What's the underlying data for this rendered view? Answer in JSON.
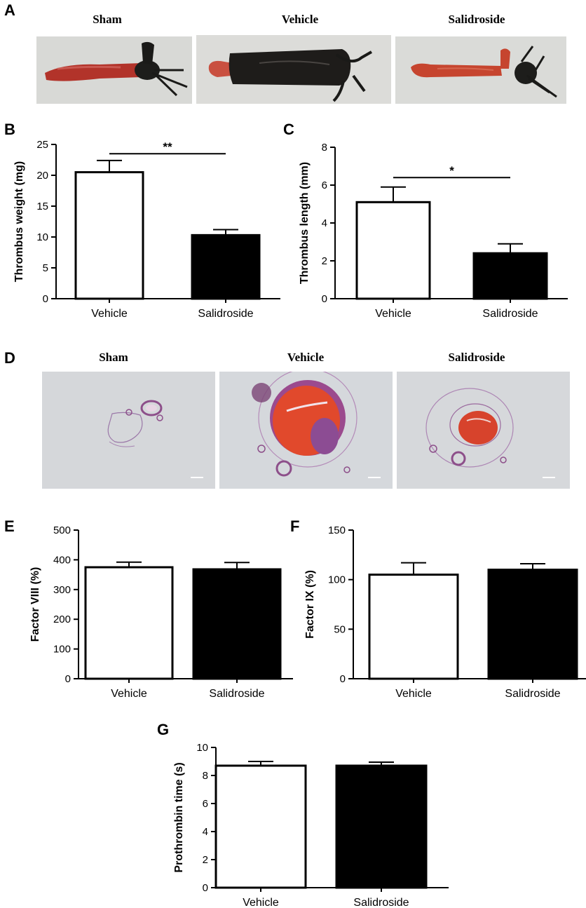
{
  "panel_a": {
    "letter": "A",
    "titles": [
      "Sham",
      "Vehicle",
      "Salidroside"
    ]
  },
  "panel_d": {
    "letter": "D",
    "titles": [
      "Sham",
      "Vehicle",
      "Salidroside"
    ]
  },
  "colors": {
    "vehicle_bar": "#ffffff",
    "salidroside_bar": "#000000",
    "photo_bg": "#d9dad8",
    "tissue_red": "#e0472a",
    "tissue_purple": "#9a4f9a"
  },
  "chart_data": [
    {
      "id": "B",
      "letter": "B",
      "type": "bar",
      "categories": [
        "Vehicle",
        "Salidroside"
      ],
      "values": [
        20.5,
        10.3
      ],
      "errors": [
        1.9,
        0.9
      ],
      "ylabel": "Thrombus weight (mg)",
      "xlabel": "",
      "ylim": [
        0,
        25
      ],
      "yticks": [
        0,
        5,
        10,
        15,
        20,
        25
      ],
      "ytick_labels": [
        "0",
        "5",
        "10",
        "15",
        "20",
        "25"
      ],
      "significance": {
        "label": "**",
        "y": 23.5
      },
      "grid": false
    },
    {
      "id": "C",
      "letter": "C",
      "type": "bar",
      "categories": [
        "Vehicle",
        "Salidroside"
      ],
      "values": [
        5.1,
        2.4
      ],
      "errors": [
        0.8,
        0.5
      ],
      "ylabel": "Thrombus length (mm)",
      "xlabel": "",
      "ylim": [
        0,
        8
      ],
      "yticks": [
        0,
        2,
        4,
        6,
        8
      ],
      "ytick_labels": [
        "0",
        "2",
        "4",
        "6",
        "8"
      ],
      "significance": {
        "label": "*",
        "y": 6.4
      },
      "grid": false
    },
    {
      "id": "E",
      "letter": "E",
      "type": "bar",
      "categories": [
        "Vehicle",
        "Salidroside"
      ],
      "values": [
        375,
        368
      ],
      "errors": [
        17,
        23
      ],
      "ylabel": "Factor VIII (%)",
      "xlabel": "",
      "ylim": [
        0,
        500
      ],
      "yticks": [
        0,
        100,
        200,
        300,
        400,
        500
      ],
      "ytick_labels": [
        "0",
        "100",
        "200",
        "300",
        "400",
        "500"
      ],
      "grid": false
    },
    {
      "id": "F",
      "letter": "F",
      "type": "bar",
      "categories": [
        "Vehicle",
        "Salidroside"
      ],
      "values": [
        105,
        110
      ],
      "errors": [
        12,
        6
      ],
      "ylabel": "Factor IX (%)",
      "xlabel": "",
      "ylim": [
        0,
        150
      ],
      "yticks": [
        0,
        50,
        100,
        150
      ],
      "ytick_labels": [
        "0",
        "50",
        "100",
        "150"
      ],
      "grid": false
    },
    {
      "id": "G",
      "letter": "G",
      "type": "bar",
      "categories": [
        "Vehicle",
        "Salidroside"
      ],
      "values": [
        8.7,
        8.7
      ],
      "errors": [
        0.3,
        0.25
      ],
      "ylabel": "Prothrombin time (s)",
      "xlabel": "",
      "ylim": [
        0,
        10
      ],
      "yticks": [
        0,
        2,
        4,
        6,
        8,
        10
      ],
      "ytick_labels": [
        "0",
        "2",
        "4",
        "6",
        "8",
        "10"
      ],
      "grid": false
    }
  ]
}
